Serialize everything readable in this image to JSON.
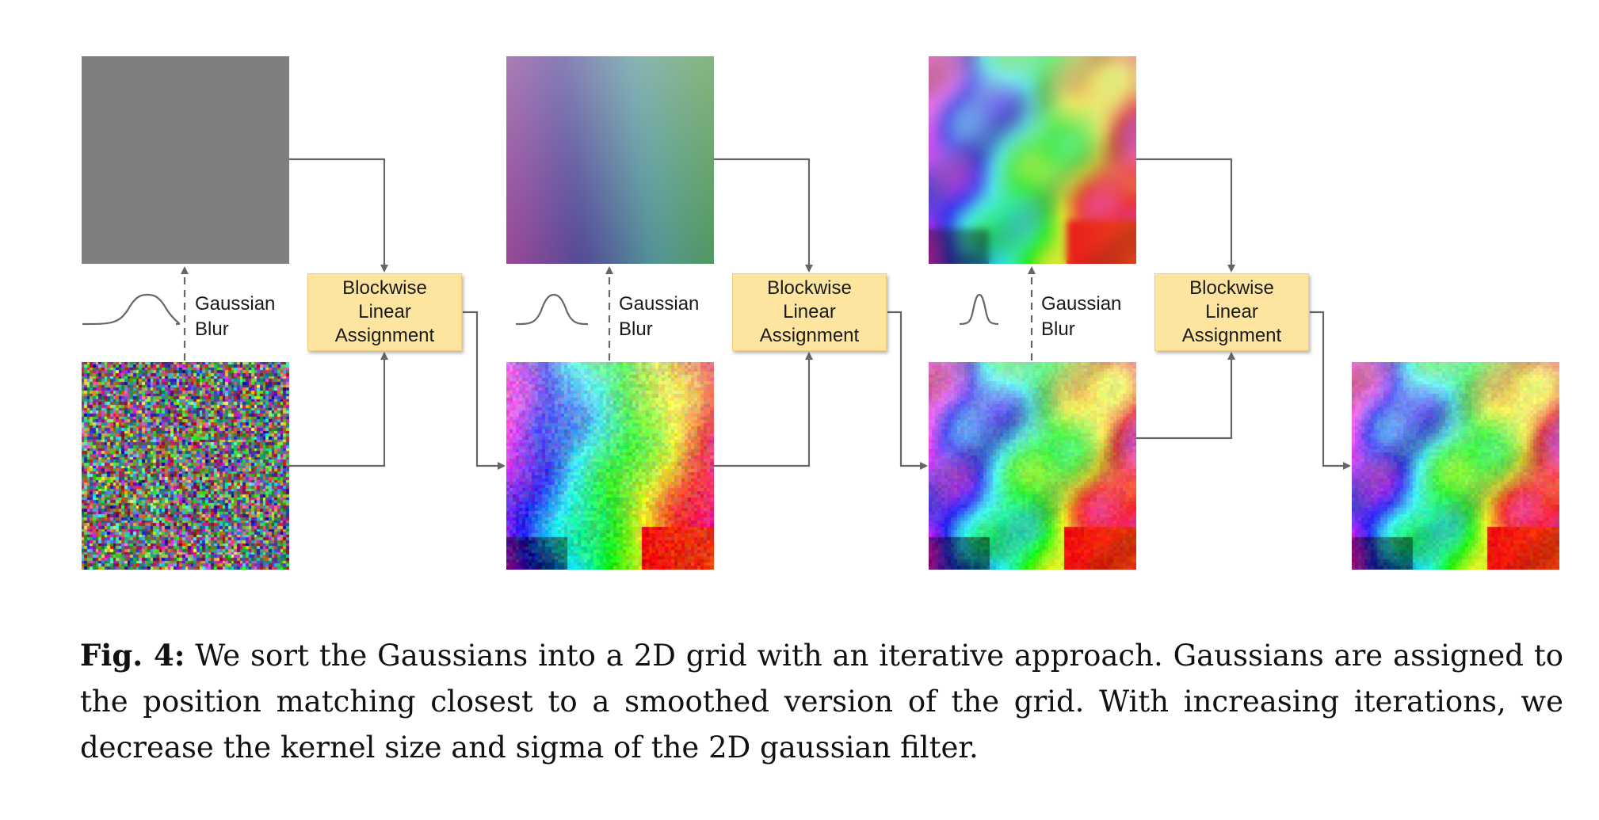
{
  "figure": {
    "stages": [
      {
        "blur_label": "Gaussian\nBlur",
        "assign_label": "Blockwise\nLinear\nAssignment"
      },
      {
        "blur_label": "Gaussian\nBlur",
        "assign_label": "Blockwise\nLinear\nAssignment"
      },
      {
        "blur_label": "Gaussian\nBlur",
        "assign_label": "Blockwise\nLinear\nAssignment"
      }
    ],
    "colors": {
      "wire": "#666666",
      "assign_box": "#fde5a0",
      "gray_tile": "#7f7f7f"
    }
  },
  "caption": {
    "label": "Fig. 4:",
    "text": " We sort the Gaussians into a 2D grid with an iterative approach. Gaussians are assigned to the position matching closest to a smoothed version of the grid. With increasing iterations, we decrease the kernel size and sigma of the 2D gaussian filter."
  }
}
